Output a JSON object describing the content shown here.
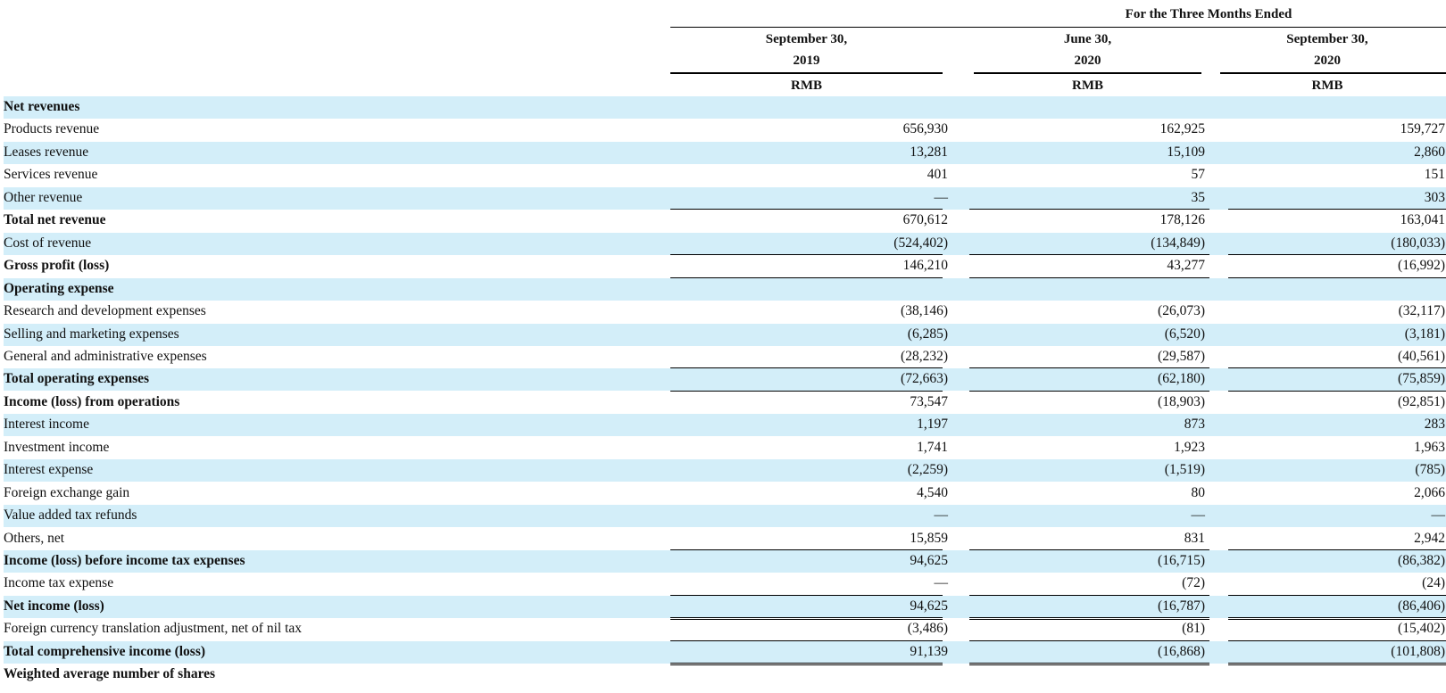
{
  "header": {
    "period_title": "For the Three Months Ended",
    "columns": [
      {
        "line1": "September 30,",
        "line2": "2019",
        "currency": "RMB"
      },
      {
        "line1": "June 30,",
        "line2": "2020",
        "currency": "RMB"
      },
      {
        "line1": "September 30,",
        "line2": "2020",
        "currency": "RMB"
      }
    ]
  },
  "rows": [
    {
      "label": "Net revenues",
      "bold": true,
      "shade": true,
      "values": [
        "",
        "",
        ""
      ]
    },
    {
      "label": "Products revenue",
      "bold": false,
      "shade": false,
      "values": [
        "656,930",
        "162,925",
        "159,727"
      ]
    },
    {
      "label": "Leases revenue",
      "bold": false,
      "shade": true,
      "values": [
        "13,281",
        "15,109",
        "2,860"
      ]
    },
    {
      "label": "Services revenue",
      "bold": false,
      "shade": false,
      "values": [
        "401",
        "57",
        "151"
      ]
    },
    {
      "label": "Other revenue",
      "bold": false,
      "shade": true,
      "values": [
        "—",
        "35",
        "303"
      ],
      "rule_after": "single"
    },
    {
      "label": "Total net revenue",
      "bold": true,
      "shade": false,
      "values": [
        "670,612",
        "178,126",
        "163,041"
      ]
    },
    {
      "label": "Cost of revenue",
      "bold": false,
      "shade": true,
      "values": [
        "(524,402)",
        "(134,849)",
        "(180,033)"
      ],
      "rule_after": "single"
    },
    {
      "label": "Gross profit (loss)",
      "bold": true,
      "shade": false,
      "values": [
        "146,210",
        "43,277",
        "(16,992)"
      ],
      "rule_after": "thick"
    },
    {
      "label": "Operating expense",
      "bold": true,
      "shade": true,
      "values": [
        "",
        "",
        ""
      ]
    },
    {
      "label": "Research and development expenses",
      "bold": false,
      "shade": false,
      "values": [
        "(38,146)",
        "(26,073)",
        "(32,117)"
      ]
    },
    {
      "label": "Selling and marketing expenses",
      "bold": false,
      "shade": true,
      "values": [
        "(6,285)",
        "(6,520)",
        "(3,181)"
      ]
    },
    {
      "label": "General and administrative expenses",
      "bold": false,
      "shade": false,
      "values": [
        "(28,232)",
        "(29,587)",
        "(40,561)"
      ],
      "rule_after": "single"
    },
    {
      "label": "Total operating expenses",
      "bold": true,
      "shade": true,
      "values": [
        "(72,663)",
        "(62,180)",
        "(75,859)"
      ],
      "rule_after": "single"
    },
    {
      "label": "Income (loss) from operations",
      "bold": true,
      "shade": false,
      "values": [
        "73,547",
        "(18,903)",
        "(92,851)"
      ]
    },
    {
      "label": "Interest income",
      "bold": false,
      "shade": true,
      "values": [
        "1,197",
        "873",
        "283"
      ]
    },
    {
      "label": "Investment income",
      "bold": false,
      "shade": false,
      "values": [
        "1,741",
        "1,923",
        "1,963"
      ]
    },
    {
      "label": "Interest expense",
      "bold": false,
      "shade": true,
      "values": [
        "(2,259)",
        "(1,519)",
        "(785)"
      ]
    },
    {
      "label": "Foreign exchange gain",
      "bold": false,
      "shade": false,
      "values": [
        "4,540",
        "80",
        "2,066"
      ]
    },
    {
      "label": "Value added tax refunds",
      "bold": false,
      "shade": true,
      "values": [
        "—",
        "—",
        "—"
      ]
    },
    {
      "label": "Others, net",
      "bold": false,
      "shade": false,
      "values": [
        "15,859",
        "831",
        "2,942"
      ],
      "rule_after": "single"
    },
    {
      "label": "Income (loss) before income tax expenses",
      "bold": true,
      "shade": true,
      "values": [
        "94,625",
        "(16,715)",
        "(86,382)"
      ]
    },
    {
      "label": "Income tax expense",
      "bold": false,
      "shade": false,
      "values": [
        "—",
        "(72)",
        "(24)"
      ],
      "rule_after": "single"
    },
    {
      "label": "Net income (loss)",
      "bold": true,
      "shade": true,
      "values": [
        "94,625",
        "(16,787)",
        "(86,406)"
      ],
      "rule_after": "double"
    },
    {
      "label": "Foreign currency translation adjustment, net of nil tax",
      "bold": false,
      "shade": false,
      "values": [
        "(3,486)",
        "(81)",
        "(15,402)"
      ],
      "rule_after": "single"
    },
    {
      "label": "Total comprehensive income (loss)",
      "bold": true,
      "shade": true,
      "values": [
        "91,139",
        "(16,868)",
        "(101,808)"
      ],
      "rule_after": "double"
    },
    {
      "label": "Weighted average number of shares",
      "bold": true,
      "shade": false,
      "values": [
        "",
        "",
        ""
      ]
    }
  ]
}
